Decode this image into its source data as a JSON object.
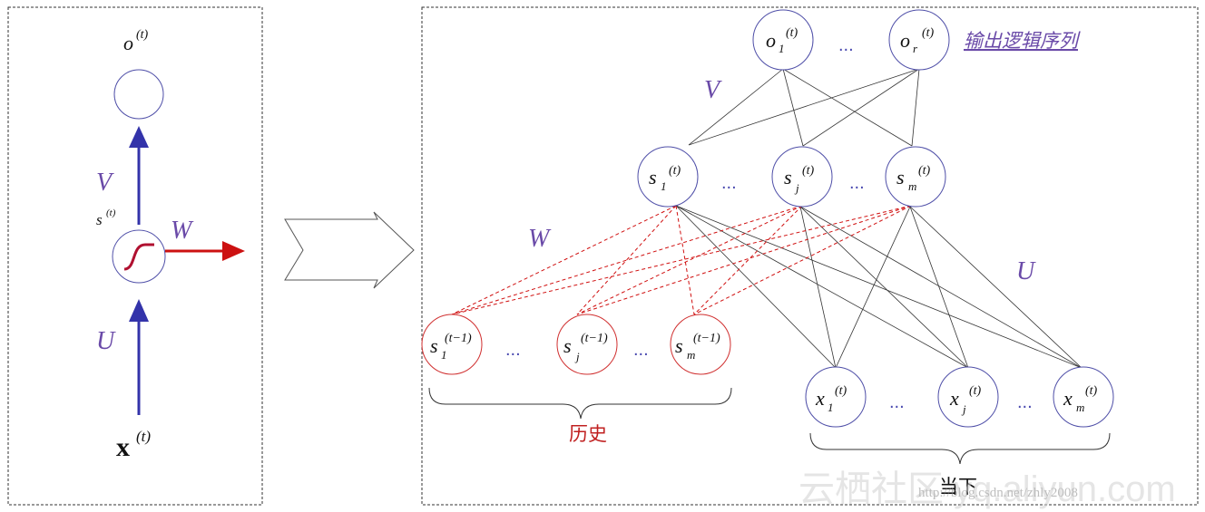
{
  "left_panel": {
    "output_label": "o",
    "output_sup": "(t)",
    "state_label": "s",
    "state_sup": "(t)",
    "input_label": "x",
    "input_sup": "(t)",
    "weight_v": "V",
    "weight_u": "U",
    "weight_w": "W"
  },
  "right_panel": {
    "output_title": "输出逻辑序列",
    "output_nodes": [
      {
        "base": "o",
        "sub": "1",
        "sup": "(t)"
      },
      {
        "base": "o",
        "sub": "r",
        "sup": "(t)"
      }
    ],
    "hidden_nodes": [
      {
        "base": "s",
        "sub": "1",
        "sup": "(t)"
      },
      {
        "base": "s",
        "sub": "j",
        "sup": "(t)"
      },
      {
        "base": "s",
        "sub": "m",
        "sup": "(t)"
      }
    ],
    "history_nodes": [
      {
        "base": "s",
        "sub": "1",
        "sup": "(t−1)"
      },
      {
        "base": "s",
        "sub": "j",
        "sup": "(t−1)"
      },
      {
        "base": "s",
        "sub": "m",
        "sup": "(t−1)"
      }
    ],
    "input_nodes": [
      {
        "base": "x",
        "sub": "1",
        "sup": "(t)"
      },
      {
        "base": "x",
        "sub": "j",
        "sup": "(t)"
      },
      {
        "base": "x",
        "sub": "m",
        "sup": "(t)"
      }
    ],
    "ellipsis": "...",
    "weight_v": "V",
    "weight_w": "W",
    "weight_u": "U",
    "history_label": "历史",
    "current_label": "当下"
  },
  "watermark": {
    "text": "云栖社区 yq.aliyun.com",
    "url": "http://blog.csdn.net/zhly2008"
  }
}
